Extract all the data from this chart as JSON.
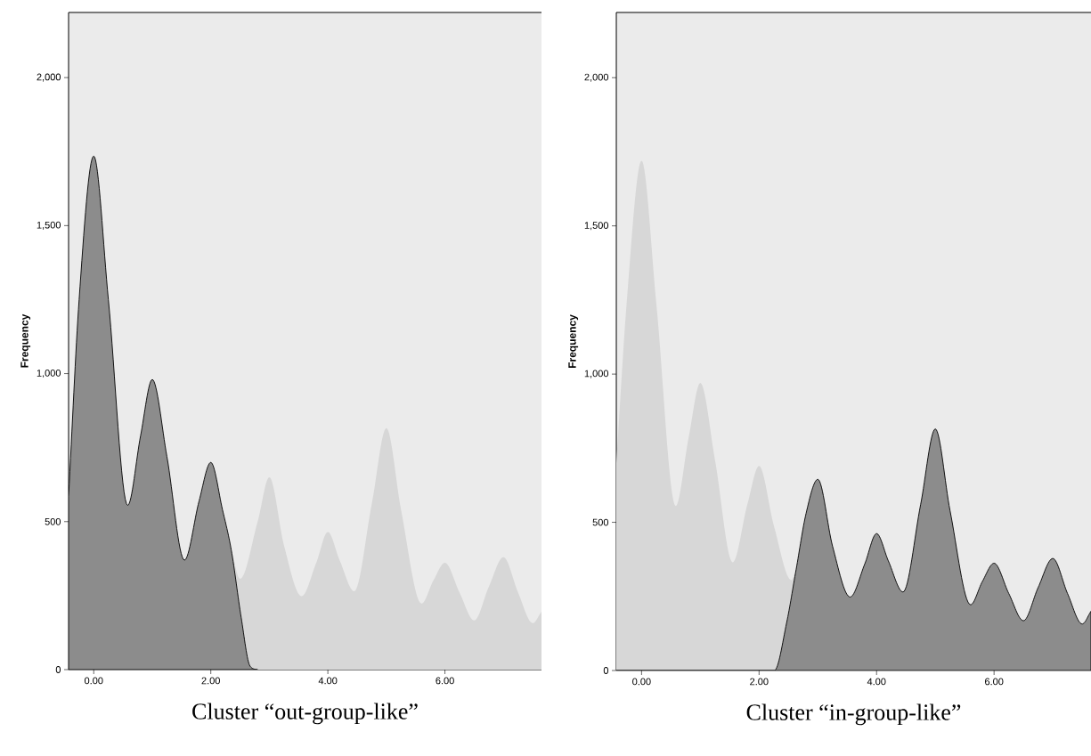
{
  "chart_data": [
    {
      "type": "area",
      "title": "Cluster “out-group-like”",
      "ylabel": "Frequency",
      "xlim": [
        -0.43,
        7.65
      ],
      "ylim": [
        0,
        2220
      ],
      "xticks": [
        {
          "value": 0,
          "label": "0.00"
        },
        {
          "value": 2,
          "label": "2.00"
        },
        {
          "value": 4,
          "label": "4.00"
        },
        {
          "value": 6,
          "label": "6.00"
        }
      ],
      "yticks": [
        0,
        500,
        {
          "value": 1000,
          "label": "1,000"
        },
        {
          "value": 1500,
          "label": "1,500"
        },
        {
          "value": 2000,
          "label": "2,000"
        }
      ],
      "series": [
        {
          "color": "#d7d7d7",
          "x": [
            2.35,
            2.5,
            2.8,
            3,
            3.25,
            3.55,
            3.8,
            4,
            4.2,
            4.45,
            4.75,
            5,
            5.25,
            5.6,
            5.8,
            6,
            6.25,
            6.5,
            6.75,
            7,
            7.25,
            7.5,
            7.65
          ],
          "values": [
            404,
            307,
            500,
            650,
            420,
            248,
            360,
            465,
            370,
            265,
            560,
            816,
            540,
            223,
            300,
            361,
            260,
            166,
            280,
            380,
            260,
            157,
            196
          ]
        },
        {
          "color": "#8c8c8c",
          "x": [
            -0.43,
            -0.25,
            0,
            0.25,
            0.58,
            0.8,
            1,
            1.25,
            1.55,
            1.8,
            2,
            2.2,
            2.35,
            2.52,
            2.67,
            2.8
          ],
          "values": [
            585,
            1250,
            1735,
            1250,
            555,
            790,
            980,
            720,
            370,
            570,
            700,
            540,
            404,
            175,
            12,
            0
          ]
        }
      ]
    },
    {
      "type": "area",
      "title": "Cluster “in-group-like”",
      "ylabel": "Frequency",
      "xlim": [
        -0.43,
        7.65
      ],
      "ylim": [
        0,
        2220
      ],
      "xticks": [
        {
          "value": 0,
          "label": "0.00"
        },
        {
          "value": 2,
          "label": "2.00"
        },
        {
          "value": 4,
          "label": "4.00"
        },
        {
          "value": 6,
          "label": "6.00"
        }
      ],
      "yticks": [
        0,
        500,
        {
          "value": 1000,
          "label": "1,000"
        },
        {
          "value": 1500,
          "label": "1,500"
        },
        {
          "value": 2000,
          "label": "2,000"
        }
      ],
      "series": [
        {
          "color": "#d7d7d7",
          "x": [
            -0.43,
            -0.25,
            0,
            0.25,
            0.58,
            0.8,
            1,
            1.25,
            1.55,
            1.8,
            2,
            2.25,
            2.55,
            2.63
          ],
          "values": [
            700,
            1250,
            1720,
            1240,
            555,
            785,
            970,
            710,
            365,
            560,
            690,
            490,
            305,
            340
          ]
        },
        {
          "color": "#8c8c8c",
          "x": [
            -0.43,
            2.26,
            2.47,
            2.63,
            2.8,
            3,
            3.25,
            3.55,
            3.8,
            4,
            4.2,
            4.45,
            4.75,
            5,
            5.25,
            5.6,
            5.8,
            6,
            6.25,
            6.5,
            6.75,
            7,
            7.25,
            7.5,
            7.65
          ],
          "values": [
            0,
            0,
            162,
            340,
            530,
            645,
            420,
            248,
            360,
            462,
            370,
            265,
            560,
            815,
            540,
            222,
            300,
            362,
            260,
            168,
            280,
            378,
            260,
            157,
            200
          ]
        }
      ]
    }
  ]
}
